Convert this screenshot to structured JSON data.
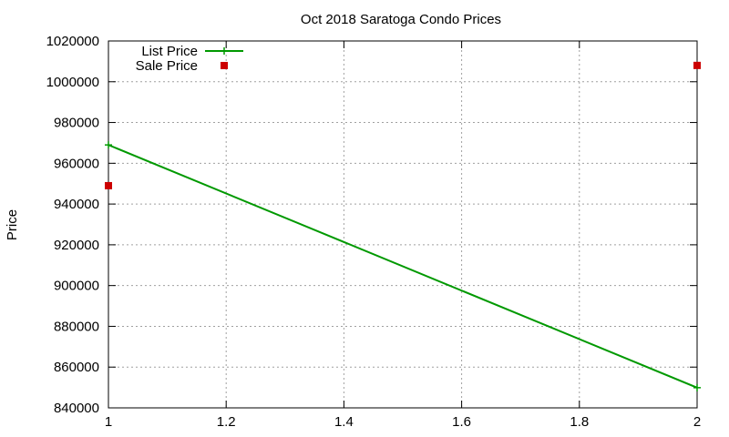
{
  "chart_data": {
    "type": "line",
    "title": "Oct 2018 Saratoga Condo Prices",
    "xlabel": "",
    "ylabel": "Price",
    "xlim": [
      1,
      2
    ],
    "ylim": [
      840000,
      1020000
    ],
    "x_ticks": [
      1,
      1.2,
      1.4,
      1.6,
      1.8,
      2
    ],
    "x_tick_labels": [
      "1",
      "1.2",
      "1.4",
      "1.6",
      "1.8",
      "2"
    ],
    "y_ticks": [
      840000,
      860000,
      880000,
      900000,
      920000,
      940000,
      960000,
      980000,
      1000000,
      1020000
    ],
    "y_tick_labels": [
      "840000",
      "860000",
      "880000",
      "900000",
      "920000",
      "940000",
      "960000",
      "980000",
      "1000000",
      "1020000"
    ],
    "grid": true,
    "legend_position": "top-left",
    "series": [
      {
        "name": "List Price",
        "style": "linespoints",
        "marker": "plus",
        "color": "#009900",
        "points": [
          {
            "x": 1,
            "y": 969000
          },
          {
            "x": 2,
            "y": 849900
          }
        ]
      },
      {
        "name": "Sale Price",
        "style": "points",
        "marker": "square",
        "color": "#cc0000",
        "points": [
          {
            "x": 1,
            "y": 949000
          },
          {
            "x": 2,
            "y": 1008000
          }
        ]
      }
    ]
  }
}
